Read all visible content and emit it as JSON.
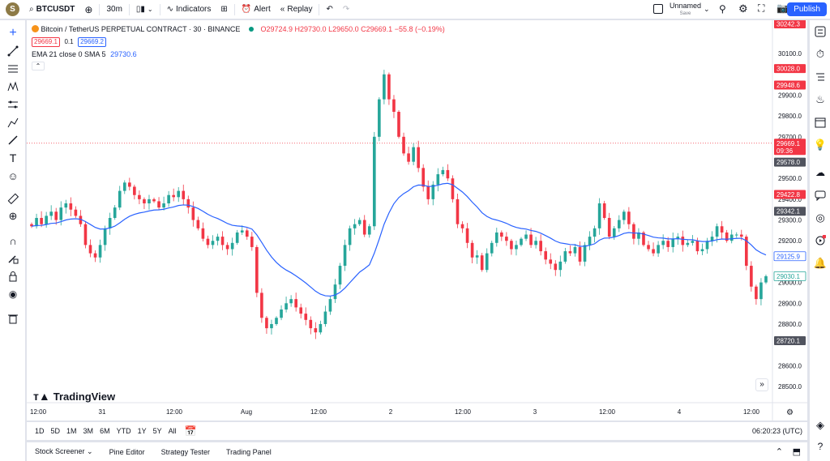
{
  "topbar": {
    "avatar_letter": "S",
    "symbol": "BTCUSDT",
    "interval": "30m",
    "indicators_label": "Indicators",
    "alert_label": "Alert",
    "replay_label": "Replay",
    "layout_name": "Unnamed",
    "layout_save": "Save",
    "publish_label": "Publish"
  },
  "legend": {
    "title": "Bitcoin / TetherUS PERPETUAL CONTRACT · 30 · BINANCE",
    "open": "O29724.9",
    "high": "H29730.0",
    "low": "L29650.0",
    "close": "C29669.1",
    "change": "−55.8 (−0.19%)",
    "bid": "29669.1",
    "spread": "0.1",
    "ask": "29669.2",
    "indicator_label": "EMA 21 close 0 SMA 5",
    "indicator_value": "29730.6"
  },
  "branding": {
    "logo_text": "TradingView"
  },
  "colors": {
    "up": "#26a69a",
    "down": "#f23645",
    "ema": "#2962ff",
    "accent": "#2962ff"
  },
  "chart_data": {
    "type": "candlestick",
    "ylim": [
      28430,
      30260
    ],
    "y_ticks": [
      "30100.0",
      "29900.0",
      "29800.0",
      "29700.0",
      "29500.0",
      "29400.0",
      "29300.0",
      "29200.0",
      "29000.0",
      "28900.0",
      "28800.0",
      "28600.0",
      "28500.0"
    ],
    "x_ticks": [
      "12:00",
      "31",
      "12:00",
      "Aug",
      "12:00",
      "2",
      "12:00",
      "3",
      "12:00",
      "4",
      "12:00"
    ],
    "price_labels": [
      {
        "text": "30242.3",
        "value": 30242.3,
        "kind": "red"
      },
      {
        "text": "30028.0",
        "value": 30028.0,
        "kind": "red"
      },
      {
        "text": "29948.6",
        "value": 29948.6,
        "kind": "red"
      },
      {
        "text": "29669.1",
        "value": 29669.1,
        "kind": "current",
        "sub": "09:36"
      },
      {
        "text": "29578.0",
        "value": 29578.0,
        "kind": "dark"
      },
      {
        "text": "29422.8",
        "value": 29422.8,
        "kind": "red"
      },
      {
        "text": "29342.1",
        "value": 29342.1,
        "kind": "dark"
      },
      {
        "text": "29125.9",
        "value": 29125.9,
        "kind": "blue"
      },
      {
        "text": "29030.1",
        "value": 29030.1,
        "kind": "green"
      },
      {
        "text": "28720.1",
        "value": 28720.1,
        "kind": "dark"
      }
    ],
    "close_series": [
      29270,
      29310,
      29280,
      29320,
      29340,
      29300,
      29360,
      29380,
      29350,
      29320,
      29280,
      29180,
      29140,
      29120,
      29180,
      29260,
      29310,
      29360,
      29440,
      29480,
      29460,
      29420,
      29400,
      29380,
      29400,
      29390,
      29360,
      29380,
      29420,
      29410,
      29440,
      29400,
      29360,
      29300,
      29260,
      29210,
      29180,
      29200,
      29220,
      29180,
      29160,
      29190,
      29240,
      29250,
      29220,
      29170,
      28950,
      28830,
      28780,
      28800,
      28830,
      28870,
      28900,
      28920,
      28880,
      28850,
      28820,
      28780,
      28760,
      28800,
      28860,
      28920,
      28990,
      29080,
      29180,
      29260,
      29280,
      29300,
      29230,
      29270,
      29700,
      29880,
      30000,
      29880,
      29820,
      29700,
      29620,
      29580,
      29650,
      29550,
      29460,
      29400,
      29470,
      29520,
      29540,
      29500,
      29400,
      29280,
      29260,
      29190,
      29120,
      29130,
      29060,
      29140,
      29190,
      29240,
      29220,
      29200,
      29160,
      29180,
      29210,
      29230,
      29180,
      29200,
      29150,
      29110,
      29090,
      29060,
      29100,
      29150,
      29140,
      29170,
      29100,
      29180,
      29220,
      29260,
      29380,
      29310,
      29220,
      29260,
      29300,
      29340,
      29280,
      29210,
      29240,
      29180,
      29160,
      29140,
      29180,
      29200,
      29170,
      29210,
      29220,
      29180,
      29190,
      29200,
      29150,
      29160,
      29200,
      29220,
      29270,
      29240,
      29200,
      29230,
      29230,
      29220,
      29080,
      28980,
      28920,
      29000,
      29030
    ]
  },
  "bottombar": {
    "periods": [
      "1D",
      "5D",
      "1M",
      "3M",
      "6M",
      "YTD",
      "1Y",
      "5Y",
      "All"
    ],
    "clock": "06:20:23 (UTC)"
  },
  "panels": [
    "Stock Screener",
    "Pine Editor",
    "Strategy Tester",
    "Trading Panel"
  ]
}
